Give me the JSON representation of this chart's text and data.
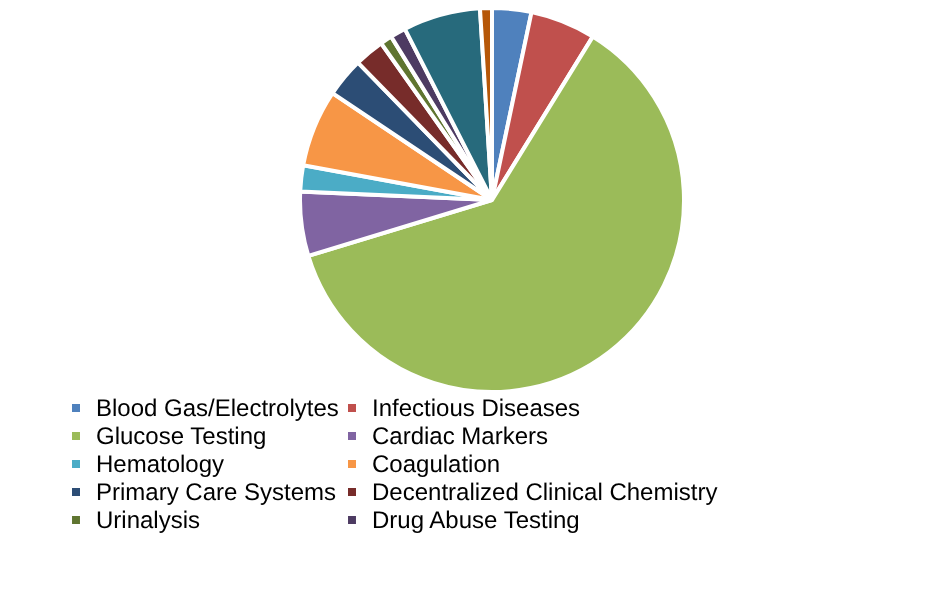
{
  "chart_data": {
    "type": "pie",
    "categories": [
      "Blood Gas/Electrolytes",
      "Infectious Diseases",
      "Glucose Testing",
      "Cardiac Markers",
      "Hematology",
      "Coagulation",
      "Primary Care Systems",
      "Decentralized Clinical Chemistry",
      "Urinalysis",
      "Drug Abuse Testing",
      null,
      null
    ],
    "values": [
      3.3,
      5.5,
      61.5,
      5.4,
      2.2,
      6.5,
      3.3,
      2.5,
      1,
      1.3,
      6.5,
      1
    ],
    "colors": [
      "#4f81bd",
      "#c0504d",
      "#9bbb59",
      "#8064a2",
      "#4bacc6",
      "#f79646",
      "#2c4d75",
      "#772c2a",
      "#5f7530",
      "#4d3b62",
      "#276a7c",
      "#b65708"
    ],
    "legend": "bottom"
  }
}
